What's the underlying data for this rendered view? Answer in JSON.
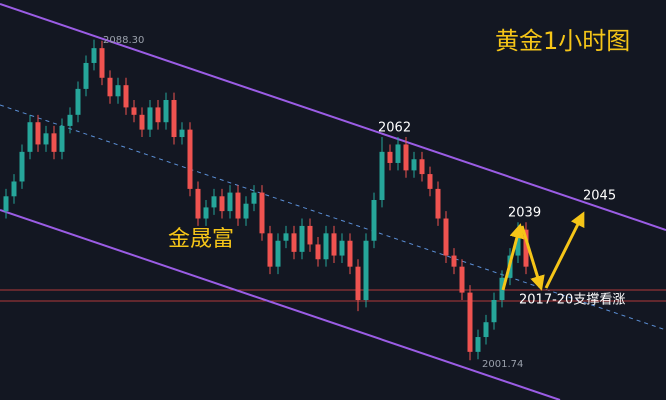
{
  "chart_data": {
    "type": "candlestick",
    "title": "黄金1小时图",
    "watermark": "金晟富",
    "annotations": [
      "2088.30",
      "2001.74",
      "2062",
      "2039",
      "2045",
      "2017-20支撑看涨"
    ],
    "ylim": [
      1991,
      2099
    ],
    "up_color": "#26a69a",
    "down_color": "#ef5350",
    "open": [
      2042,
      2046,
      2050,
      2058,
      2066,
      2060,
      2063,
      2058,
      2065,
      2068,
      2075,
      2082,
      2086,
      2078,
      2073,
      2076,
      2070,
      2068,
      2064,
      2070,
      2066,
      2072,
      2062,
      2064,
      2048,
      2040,
      2043,
      2046,
      2042,
      2047,
      2040,
      2044,
      2047,
      2036,
      2027,
      2034,
      2036,
      2031,
      2038,
      2033,
      2029,
      2036,
      2030,
      2034,
      2027,
      2018,
      2034,
      2045,
      2058,
      2055,
      2060,
      2053,
      2056,
      2052,
      2048,
      2040,
      2030,
      2027,
      2020,
      2004,
      2008,
      2012,
      2018,
      2024,
      2030,
      2037
    ],
    "high": [
      2048,
      2052,
      2060,
      2068,
      2068,
      2065,
      2065,
      2067,
      2070,
      2077,
      2084,
      2088.3,
      2088,
      2080,
      2078,
      2078,
      2072,
      2070,
      2072,
      2072,
      2074,
      2074,
      2066,
      2066,
      2050,
      2045,
      2048,
      2048,
      2049,
      2049,
      2046,
      2049,
      2049,
      2038,
      2036,
      2038,
      2038,
      2040,
      2040,
      2035,
      2038,
      2038,
      2036,
      2036,
      2029,
      2036,
      2047,
      2062,
      2060,
      2062,
      2062,
      2058,
      2058,
      2054,
      2050,
      2042,
      2032,
      2029,
      2022,
      2010,
      2014,
      2020,
      2026,
      2032,
      2039,
      2039
    ],
    "low": [
      2040,
      2044,
      2048,
      2056,
      2058,
      2058,
      2056,
      2056,
      2063,
      2066,
      2073,
      2080,
      2076,
      2071,
      2071,
      2068,
      2066,
      2062,
      2062,
      2064,
      2064,
      2060,
      2060,
      2046,
      2038,
      2038,
      2041,
      2040,
      2040,
      2038,
      2038,
      2042,
      2034,
      2025,
      2025,
      2032,
      2029,
      2029,
      2031,
      2027,
      2027,
      2028,
      2028,
      2025,
      2015,
      2016,
      2032,
      2043,
      2053,
      2053,
      2051,
      2051,
      2050,
      2046,
      2038,
      2028,
      2025,
      2018,
      2001.74,
      2002,
      2006,
      2010,
      2016,
      2022,
      2028,
      2025
    ],
    "close": [
      2046,
      2050,
      2058,
      2066,
      2060,
      2063,
      2058,
      2065,
      2068,
      2075,
      2082,
      2086,
      2078,
      2073,
      2076,
      2070,
      2068,
      2064,
      2070,
      2066,
      2072,
      2062,
      2064,
      2048,
      2040,
      2043,
      2046,
      2042,
      2047,
      2040,
      2044,
      2047,
      2036,
      2027,
      2034,
      2036,
      2031,
      2038,
      2033,
      2029,
      2036,
      2030,
      2034,
      2027,
      2018,
      2034,
      2045,
      2058,
      2055,
      2060,
      2053,
      2056,
      2052,
      2048,
      2040,
      2030,
      2027,
      2020,
      2004,
      2008,
      2012,
      2018,
      2024,
      2030,
      2037,
      2027
    ]
  }
}
